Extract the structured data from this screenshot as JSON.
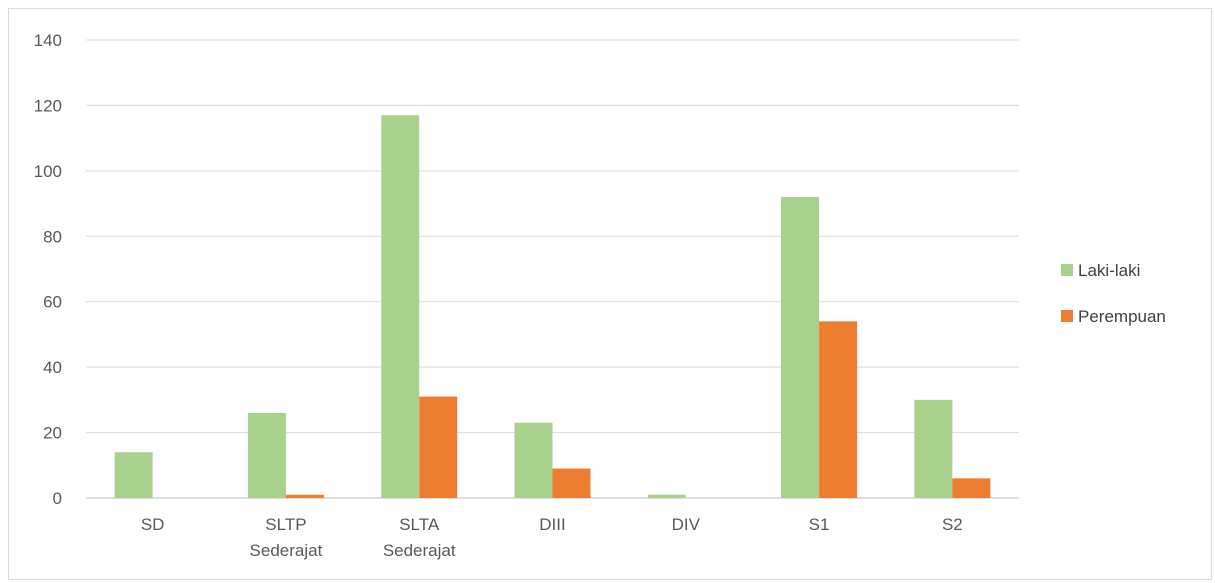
{
  "chart_data": {
    "type": "bar",
    "categories": [
      [
        "SD"
      ],
      [
        "SLTP",
        "Sederajat"
      ],
      [
        "SLTA",
        "Sederajat"
      ],
      [
        "DIII"
      ],
      [
        "DIV"
      ],
      [
        "S1"
      ],
      [
        "S2"
      ]
    ],
    "series": [
      {
        "name": "Laki-laki",
        "color": "#a9d18e",
        "values": [
          14,
          26,
          117,
          23,
          1,
          92,
          30
        ]
      },
      {
        "name": "Perempuan",
        "color": "#ed7d31",
        "values": [
          0,
          1,
          31,
          9,
          0,
          54,
          6
        ]
      }
    ],
    "ylim": [
      0,
      140
    ],
    "yticks": [
      0,
      20,
      40,
      60,
      80,
      100,
      120,
      140
    ],
    "grid": true,
    "legend_position": "right",
    "xlabel": "",
    "ylabel": "",
    "title": ""
  }
}
